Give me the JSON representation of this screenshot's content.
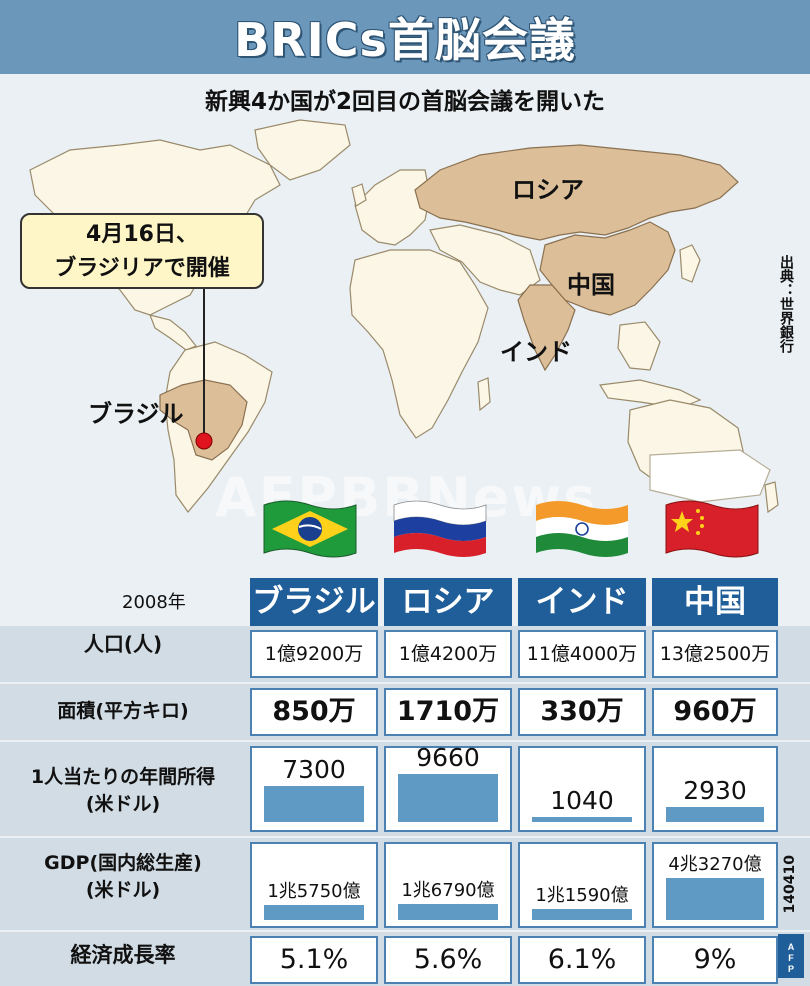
{
  "header": {
    "title": "BRICs首脳会議",
    "subtitle": "新興4か国が2回目の首脳会議を開いた"
  },
  "map": {
    "labels": {
      "russia": "ロシア",
      "china": "中国",
      "india": "インド",
      "brazil": "ブラジル"
    },
    "callout": {
      "line1": "4月16日、",
      "line2": "ブラジリアで開催"
    },
    "land_color": "#fbf6e6",
    "highlight_color": "#dcbf98",
    "marker_color": "#e0141e"
  },
  "source": "出典：世界銀行",
  "watermark": "AFPBBNews",
  "code": "140410",
  "logo": "AFP",
  "table": {
    "year": "2008年",
    "countries": [
      "ブラジル",
      "ロシア",
      "インド",
      "中国"
    ],
    "rows": {
      "population": {
        "label": "人口(人)",
        "values": [
          "1億9200万",
          "1億4200万",
          "11億4000万",
          "13億2500万"
        ]
      },
      "area": {
        "label": "面積(平方キロ)",
        "values": [
          "850万",
          "1710万",
          "330万",
          "960万"
        ]
      },
      "income": {
        "label1": "1人当たりの年間所得",
        "label2": "(米ドル)",
        "values": [
          "7300",
          "9660",
          "1040",
          "2930"
        ],
        "numeric": [
          7300,
          9660,
          1040,
          2930
        ]
      },
      "gdp": {
        "label1": "GDP(国内総生産)",
        "label2": "(米ドル)",
        "values": [
          "1兆5750億",
          "1兆6790億",
          "1兆1590億",
          "4兆3270億"
        ],
        "numeric": [
          15750,
          16790,
          11590,
          43270
        ]
      },
      "growth": {
        "label": "経済成長率",
        "values": [
          "5.1%",
          "5.6%",
          "6.1%",
          "9%"
        ]
      }
    }
  },
  "colors": {
    "header_bg": "#6b97bb",
    "column_head": "#1f5e99",
    "bar": "#5e9ac4",
    "cell_border": "#4b82b1",
    "row_bg": "#d2dce4"
  }
}
